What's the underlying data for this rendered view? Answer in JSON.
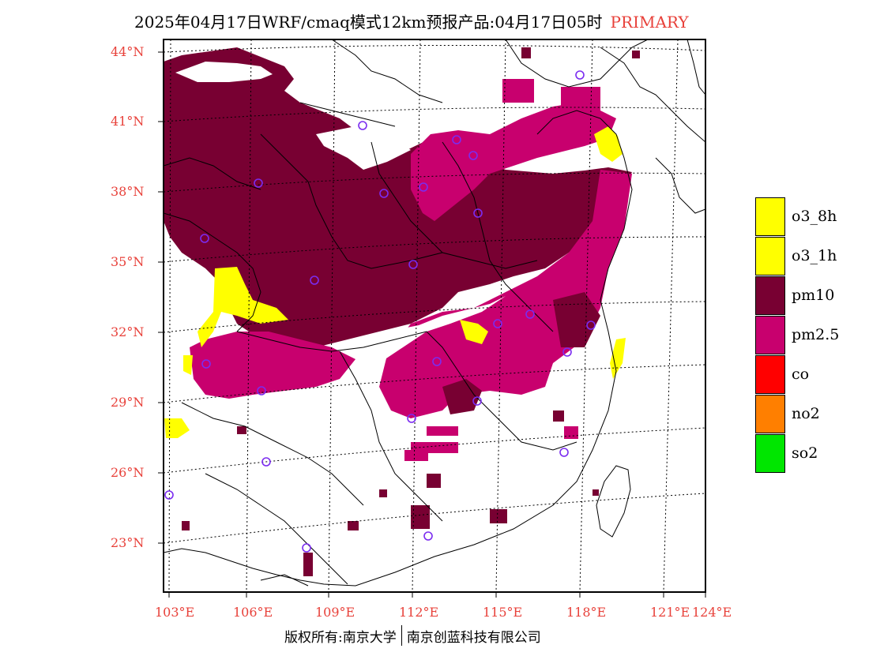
{
  "title": {
    "main": "2025年04月17日WRF/cmaq模式12km预报产品:04月17日05时",
    "tag": "PRIMARY"
  },
  "latitude_labels": [
    "44°N",
    "41°N",
    "38°N",
    "35°N",
    "32°N",
    "29°N",
    "26°N",
    "23°N"
  ],
  "longitude_labels": [
    "103°E",
    "106°E",
    "109°E",
    "112°E",
    "115°E",
    "118°E",
    "121°E",
    "124°E"
  ],
  "legend": {
    "items": [
      {
        "label": "o3_8h",
        "color": "#ffff00"
      },
      {
        "label": "o3_1h",
        "color": "#ffff00"
      },
      {
        "label": "pm10",
        "color": "#780032"
      },
      {
        "label": "pm2.5",
        "color": "#c8006e"
      },
      {
        "label": "co",
        "color": "#ff0000"
      },
      {
        "label": "no2",
        "color": "#ff7f00"
      },
      {
        "label": "so2",
        "color": "#00e600"
      }
    ]
  },
  "footer": {
    "left": "版权所有:南京大学",
    "right": "南京创蓝科技有限公司"
  },
  "colors": {
    "accent": "#e8413a",
    "pm10": "#780032",
    "pm25": "#c8006e",
    "o3": "#ffff00",
    "station_marker": "#7b2cf0"
  }
}
